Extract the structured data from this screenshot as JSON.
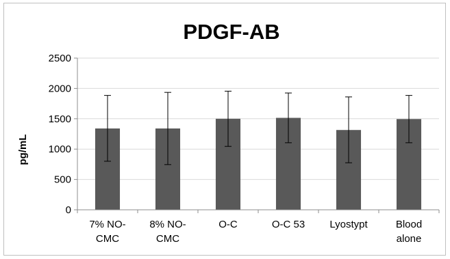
{
  "chart_data": {
    "type": "bar",
    "title": "PDGF-AB",
    "xlabel": "",
    "ylabel": "pg/mL",
    "ylim": [
      0,
      2500
    ],
    "yticks": [
      0,
      500,
      1000,
      1500,
      2000,
      2500
    ],
    "grid": true,
    "legend": "none",
    "categories": [
      [
        "7% NO-",
        "CMC"
      ],
      [
        "8% NO-",
        "CMC"
      ],
      [
        "O-C"
      ],
      [
        "O-C 53"
      ],
      [
        "Lyostypt"
      ],
      [
        "Blood",
        "alone"
      ]
    ],
    "values": [
      1340,
      1340,
      1500,
      1515,
      1315,
      1495
    ],
    "error_bars": [
      {
        "low": 800,
        "high": 1885
      },
      {
        "low": 745,
        "high": 1935
      },
      {
        "low": 1045,
        "high": 1955
      },
      {
        "low": 1105,
        "high": 1925
      },
      {
        "low": 775,
        "high": 1860
      },
      {
        "low": 1105,
        "high": 1885
      }
    ],
    "colors": {
      "bar": "#595959",
      "grid": "#d9d9d9",
      "axis": "#8c8c8c",
      "error_bar": "#000000"
    }
  }
}
